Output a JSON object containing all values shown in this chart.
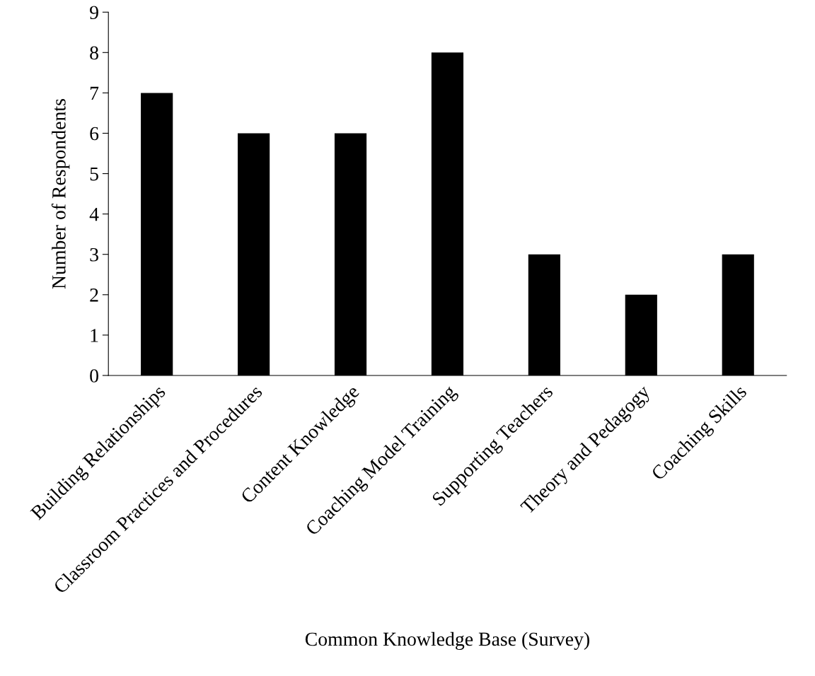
{
  "chart_data": {
    "type": "bar",
    "xlabel": "Common Knowledge Base (Survey)",
    "ylabel": "Number of Respondents",
    "categories": [
      "Building Relationships",
      "Classroom Practices and Procedures",
      "Content Knowledge",
      "Coaching Model Training",
      "Supporting Teachers",
      "Theory and Pedagogy",
      "Coaching Skills"
    ],
    "values": [
      7,
      6,
      6,
      8,
      3,
      2,
      3
    ],
    "color": "#000000",
    "ylim": [
      0,
      9
    ],
    "yticks": [
      0,
      1,
      2,
      3,
      4,
      5,
      6,
      7,
      8,
      9
    ],
    "grid": false
  }
}
